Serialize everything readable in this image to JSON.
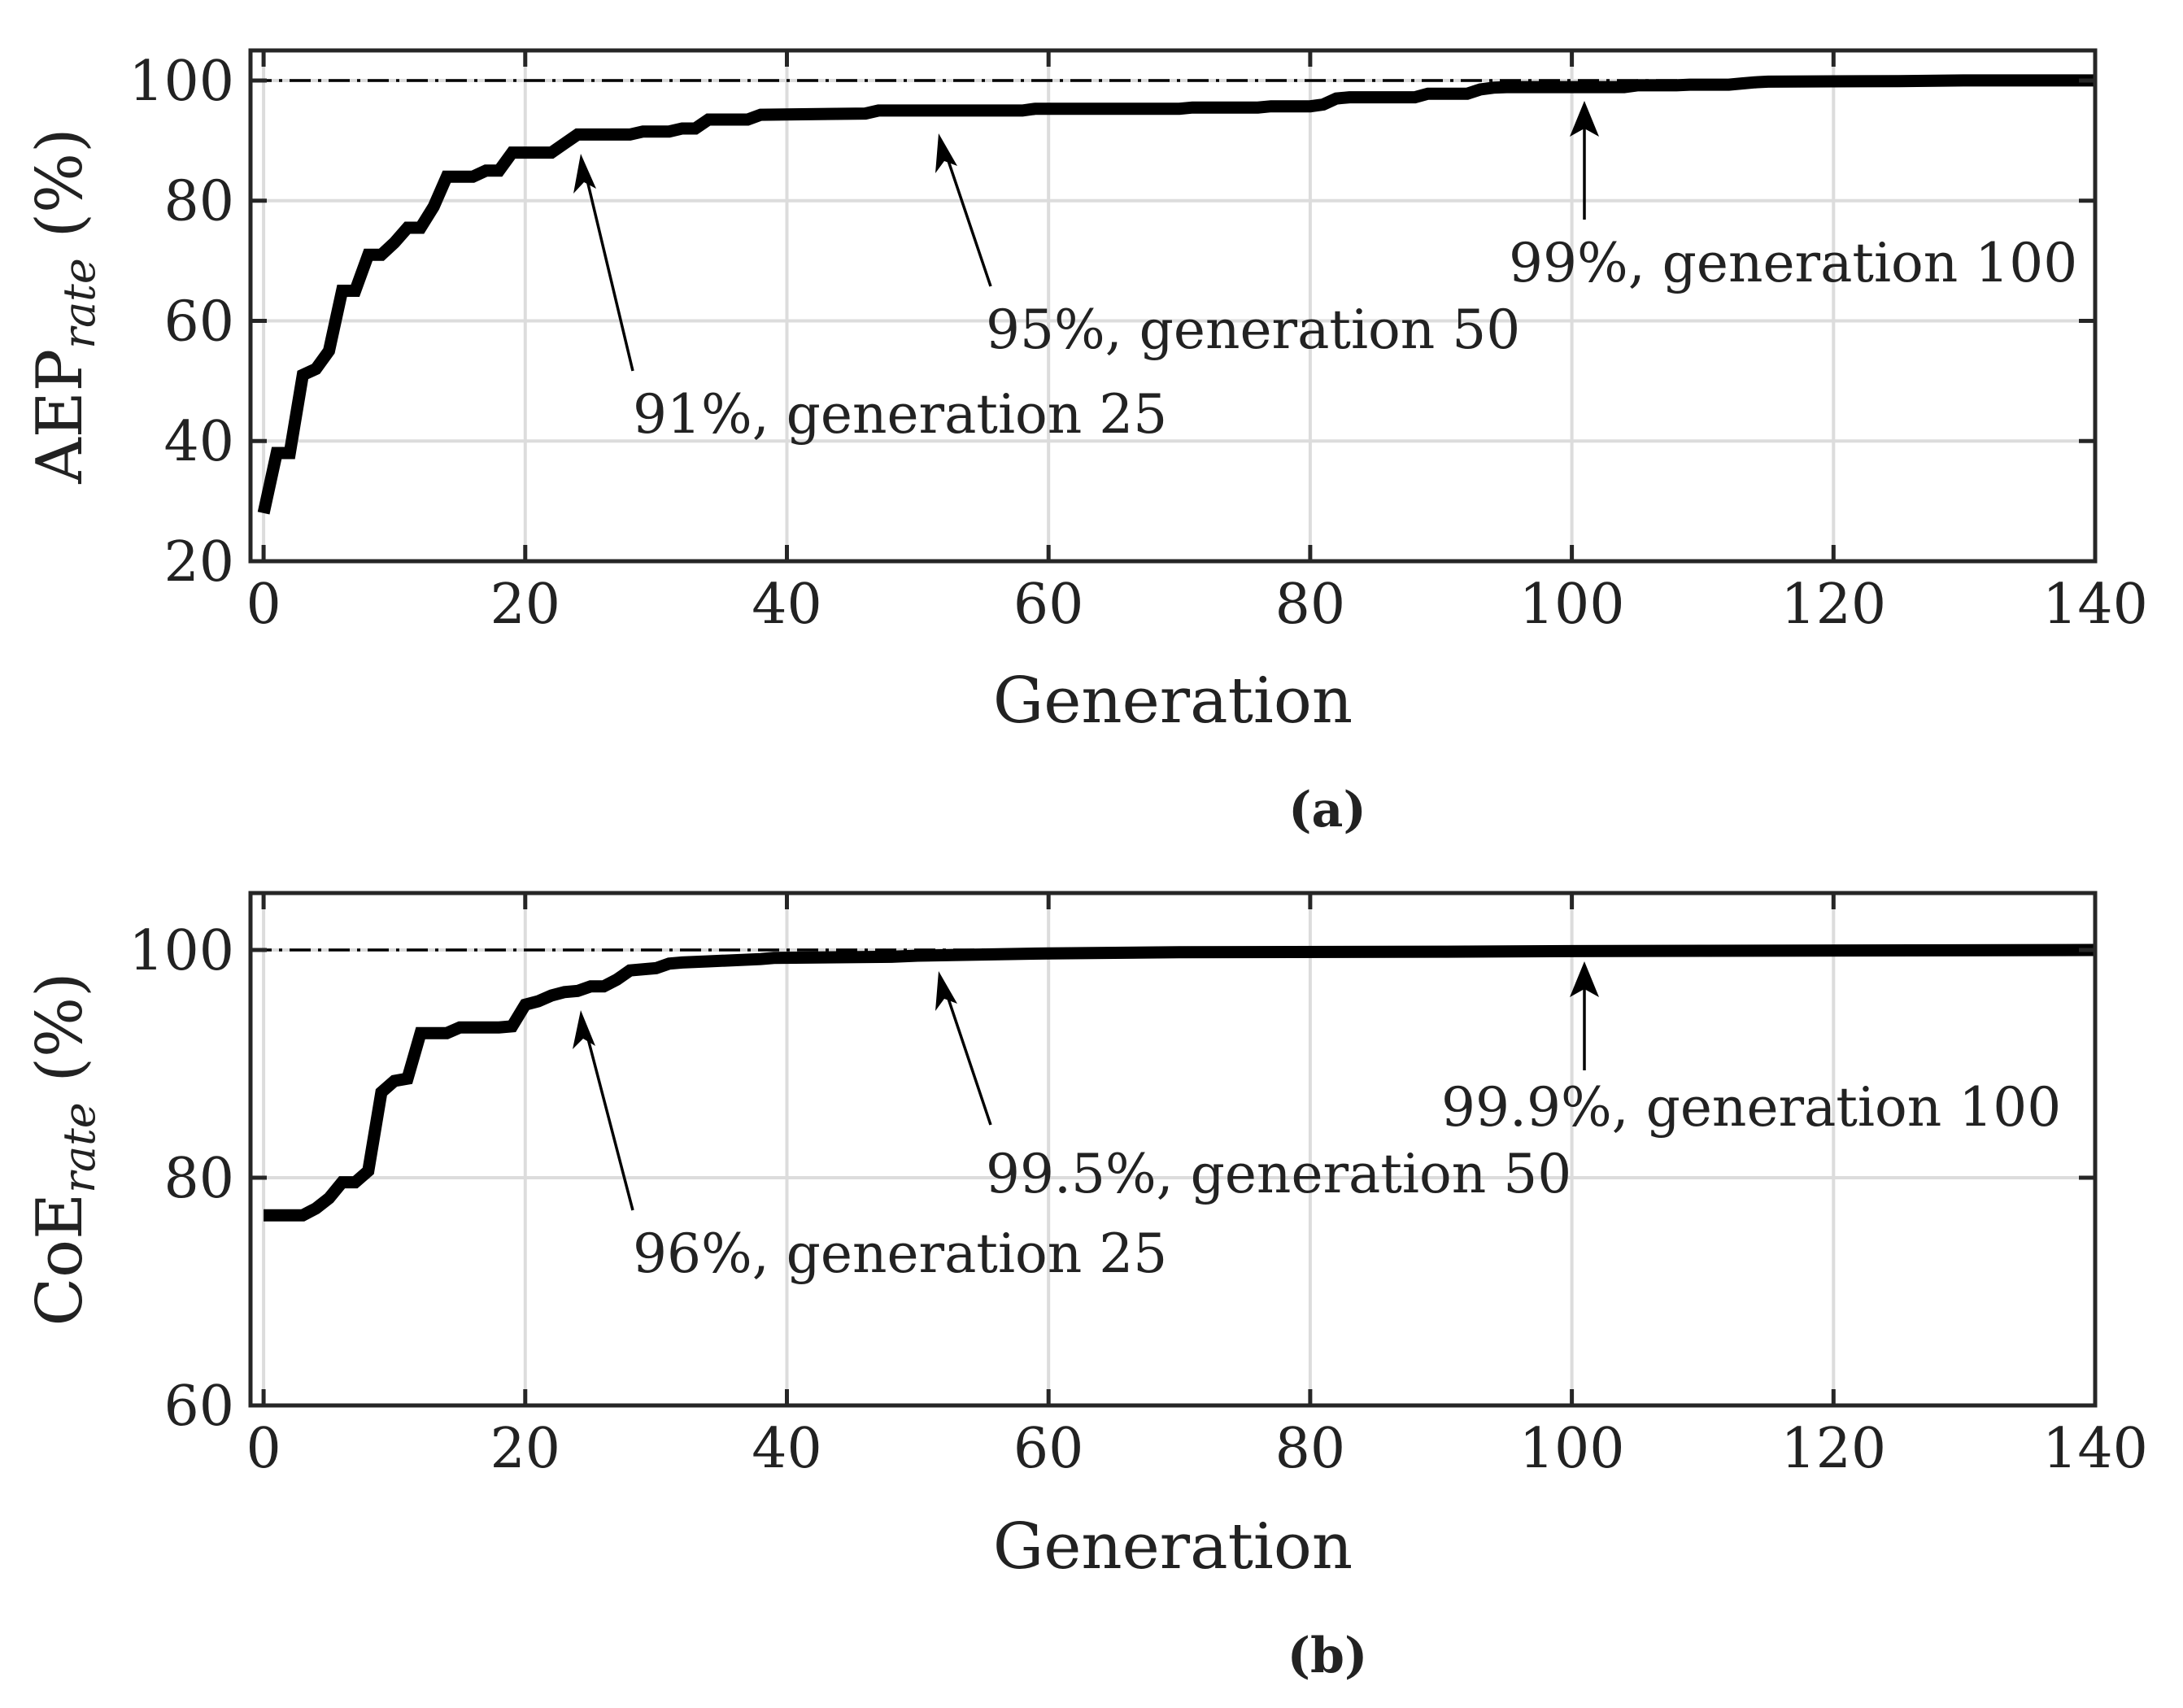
{
  "chart_data": [
    {
      "type": "line",
      "panel_label": "(a)",
      "xlabel": "Generation",
      "ylabel_main": "AEP",
      "ylabel_sub": "rate",
      "ylabel_unit": "(%)",
      "xlim": [
        -1,
        140
      ],
      "ylim": [
        20,
        105
      ],
      "xticks": [
        0,
        20,
        40,
        60,
        80,
        100,
        120,
        140
      ],
      "yticks": [
        20,
        40,
        60,
        80,
        100
      ],
      "grid": true,
      "reference_line": {
        "y": 100,
        "style": "dash-dot"
      },
      "series": [
        {
          "name": "AEP_rate",
          "x": [
            0,
            1,
            2,
            3,
            4,
            5,
            6,
            7,
            8,
            9,
            10,
            11,
            12,
            13,
            14,
            15,
            16,
            17,
            18,
            19,
            20,
            21,
            22,
            23,
            24,
            25,
            28,
            29,
            31,
            32,
            33,
            34,
            37,
            38,
            46,
            47,
            58,
            59,
            70,
            71,
            76,
            77,
            80,
            81,
            82,
            83,
            88,
            89,
            92,
            93,
            94,
            95,
            104,
            105,
            108,
            109,
            112,
            113,
            114,
            115,
            120,
            125,
            130,
            140
          ],
          "y": [
            28,
            38,
            38,
            51,
            52,
            55,
            65,
            65,
            71,
            71,
            73,
            75.5,
            75.5,
            79,
            84,
            84,
            84,
            85,
            85,
            88,
            88,
            88,
            88,
            89.5,
            91,
            91,
            91,
            91.5,
            91.5,
            92,
            92,
            93.5,
            93.5,
            94.3,
            94.5,
            95,
            95,
            95.3,
            95.3,
            95.5,
            95.5,
            95.7,
            95.7,
            96,
            97,
            97.2,
            97.2,
            97.8,
            97.8,
            98.5,
            98.8,
            98.9,
            98.9,
            99.2,
            99.2,
            99.3,
            99.3,
            99.5,
            99.7,
            99.8,
            99.85,
            99.9,
            100,
            100
          ]
        }
      ],
      "annotations": [
        {
          "text": "91%, generation 25",
          "x": 25,
          "y": 91
        },
        {
          "text": "95%, generation 50",
          "x": 50,
          "y": 95
        },
        {
          "text": "99%, generation 100",
          "x": 100,
          "y": 99
        }
      ]
    },
    {
      "type": "line",
      "panel_label": "(b)",
      "xlabel": "Generation",
      "ylabel_main": "CoE",
      "ylabel_sub": "rate",
      "ylabel_unit": "(%)",
      "xlim": [
        -1,
        140
      ],
      "ylim": [
        60,
        105
      ],
      "xticks": [
        0,
        20,
        40,
        60,
        80,
        100,
        120,
        140
      ],
      "yticks": [
        60,
        80,
        100
      ],
      "grid": true,
      "reference_line": {
        "y": 100,
        "style": "dash-dot"
      },
      "series": [
        {
          "name": "CoE_rate",
          "x": [
            0,
            3,
            4,
            5,
            6,
            7,
            8,
            9,
            10,
            11,
            12,
            13,
            14,
            15,
            16,
            17,
            18,
            19,
            20,
            21,
            22,
            23,
            24,
            25,
            26,
            27,
            28,
            30,
            31,
            32,
            34,
            38,
            39,
            48,
            50,
            60,
            70,
            90,
            100,
            140
          ],
          "y": [
            76.7,
            76.7,
            77.3,
            78.2,
            79.6,
            79.6,
            80.6,
            87.5,
            88.5,
            88.7,
            92.7,
            92.7,
            92.7,
            93.2,
            93.2,
            93.2,
            93.2,
            93.3,
            95.2,
            95.5,
            96,
            96.3,
            96.4,
            96.8,
            96.8,
            97.4,
            98.2,
            98.4,
            98.8,
            98.9,
            99,
            99.2,
            99.3,
            99.4,
            99.5,
            99.7,
            99.8,
            99.85,
            99.9,
            100
          ]
        }
      ],
      "annotations": [
        {
          "text": "96%, generation 25",
          "x": 25,
          "y": 96
        },
        {
          "text": "99.5%, generation 50",
          "x": 50,
          "y": 99.5
        },
        {
          "text": "99.9%, generation 100",
          "x": 100,
          "y": 99.9
        }
      ]
    }
  ]
}
